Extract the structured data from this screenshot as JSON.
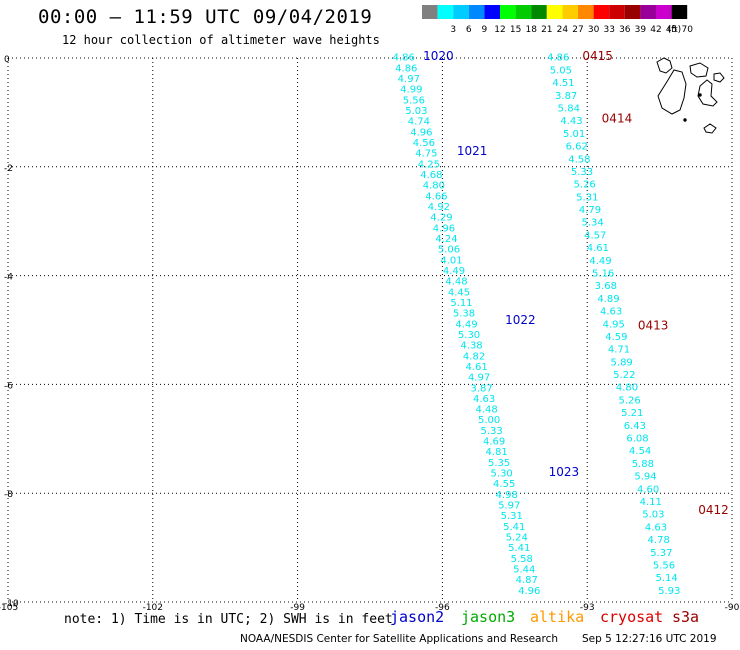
{
  "header": {
    "title": "00:00 – 11:59 UTC 09/04/2019",
    "subtitle": "12 hour collection of altimeter wave heights"
  },
  "color_scale": {
    "unit": "(ft)",
    "levels": [
      {
        "label": "",
        "color": "#808080"
      },
      {
        "label": "3",
        "color": "#00ffff"
      },
      {
        "label": "6",
        "color": "#00ccff"
      },
      {
        "label": "9",
        "color": "#0088ff"
      },
      {
        "label": "12",
        "color": "#0000ff"
      },
      {
        "label": "15",
        "color": "#00ff00"
      },
      {
        "label": "18",
        "color": "#00cc00"
      },
      {
        "label": "21",
        "color": "#008800"
      },
      {
        "label": "24",
        "color": "#ffff00"
      },
      {
        "label": "27",
        "color": "#ffcc00"
      },
      {
        "label": "30",
        "color": "#ff8800"
      },
      {
        "label": "33",
        "color": "#ff0000"
      },
      {
        "label": "36",
        "color": "#cc0000"
      },
      {
        "label": "39",
        "color": "#990000"
      },
      {
        "label": "42",
        "color": "#990099"
      },
      {
        "label": "45",
        "color": "#cc00cc"
      },
      {
        "label": "70",
        "color": "#000000"
      }
    ]
  },
  "map": {
    "lon_range": [
      -105,
      -90
    ],
    "lat_range": [
      -10,
      0
    ],
    "lon_ticks": [
      "-105",
      "-102",
      "-99",
      "-96",
      "-93",
      "-90"
    ],
    "lat_ticks": [
      "0",
      "-2",
      "-4",
      "-6",
      "-8",
      "-10"
    ],
    "land": "Galapagos Islands"
  },
  "passes": [
    {
      "mission": "jason2",
      "color": "#00e5ee",
      "start": [
        -96.8,
        -0.05
      ],
      "end": [
        -94.2,
        -9.85
      ],
      "values": [
        "4.86",
        "4.86",
        "4.97",
        "4.99",
        "5.56",
        "5.03",
        "4.74",
        "4.96",
        "4.56",
        "4.75",
        "4.25",
        "4.68",
        "4.80",
        "4.66",
        "4.92",
        "4.29",
        "4.96",
        "4.24",
        "5.06",
        "4.01",
        "4.49",
        "4.48",
        "4.45",
        "5.11",
        "5.38",
        "4.49",
        "5.30",
        "4.38",
        "4.82",
        "4.61",
        "4.97",
        "3.87",
        "4.63",
        "4.48",
        "5.00",
        "5.33",
        "4.69",
        "4.81",
        "5.35",
        "5.30",
        "4.55",
        "4.98",
        "5.97",
        "5.31",
        "5.41",
        "5.24",
        "5.41",
        "5.58",
        "5.44",
        "4.87",
        "4.96"
      ],
      "times": [
        {
          "label": "1020",
          "lon": -96.4,
          "lat": 0.0
        },
        {
          "label": "1021",
          "lon": -95.7,
          "lat": -1.75
        },
        {
          "label": "1022",
          "lon": -94.7,
          "lat": -4.85
        },
        {
          "label": "1023",
          "lon": -93.8,
          "lat": -7.65
        }
      ]
    },
    {
      "mission": "cryosat",
      "color": "#00e5ee",
      "start": [
        -93.6,
        -0.05
      ],
      "end": [
        -91.3,
        -9.85
      ],
      "values": [
        "4.86",
        "5.05",
        "4.51",
        "3.87",
        "5.84",
        "4.43",
        "5.01",
        "6.62",
        "4.58",
        "5.33",
        "5.26",
        "5.31",
        "4.79",
        "5.34",
        "4.57",
        "4.61",
        "4.49",
        "5.16",
        "3.68",
        "4.89",
        "4.63",
        "4.95",
        "4.59",
        "4.71",
        "5.89",
        "5.22",
        "4.80",
        "5.26",
        "5.21",
        "6.43",
        "6.08",
        "4.54",
        "5.88",
        "5.94",
        "4.60",
        "4.11",
        "5.03",
        "4.63",
        "4.78",
        "5.37",
        "5.56",
        "5.14",
        "5.93"
      ],
      "times": [
        {
          "label": "0415",
          "lon": -93.1,
          "lat": 0.0
        },
        {
          "label": "0414",
          "lon": -92.7,
          "lat": -1.15
        },
        {
          "label": "0413",
          "lon": -91.95,
          "lat": -4.95
        },
        {
          "label": "0412",
          "lon": -90.7,
          "lat": -8.35
        }
      ]
    }
  ],
  "footer": {
    "note": "note: 1) Time is in UTC; 2) SWH is in feet",
    "missions": [
      {
        "label": "jason2",
        "color": "#0000cc"
      },
      {
        "label": "jason3",
        "color": "#00aa00"
      },
      {
        "label": "altika",
        "color": "#ff9900"
      },
      {
        "label": "cryosat",
        "color": "#dd0000"
      },
      {
        "label": "s3a",
        "color": "#990000"
      }
    ],
    "credit": "NOAA/NESDIS Center for Satellite Applications and Research",
    "timestamp": "Sep  5 12:27:16 UTC 2019"
  }
}
